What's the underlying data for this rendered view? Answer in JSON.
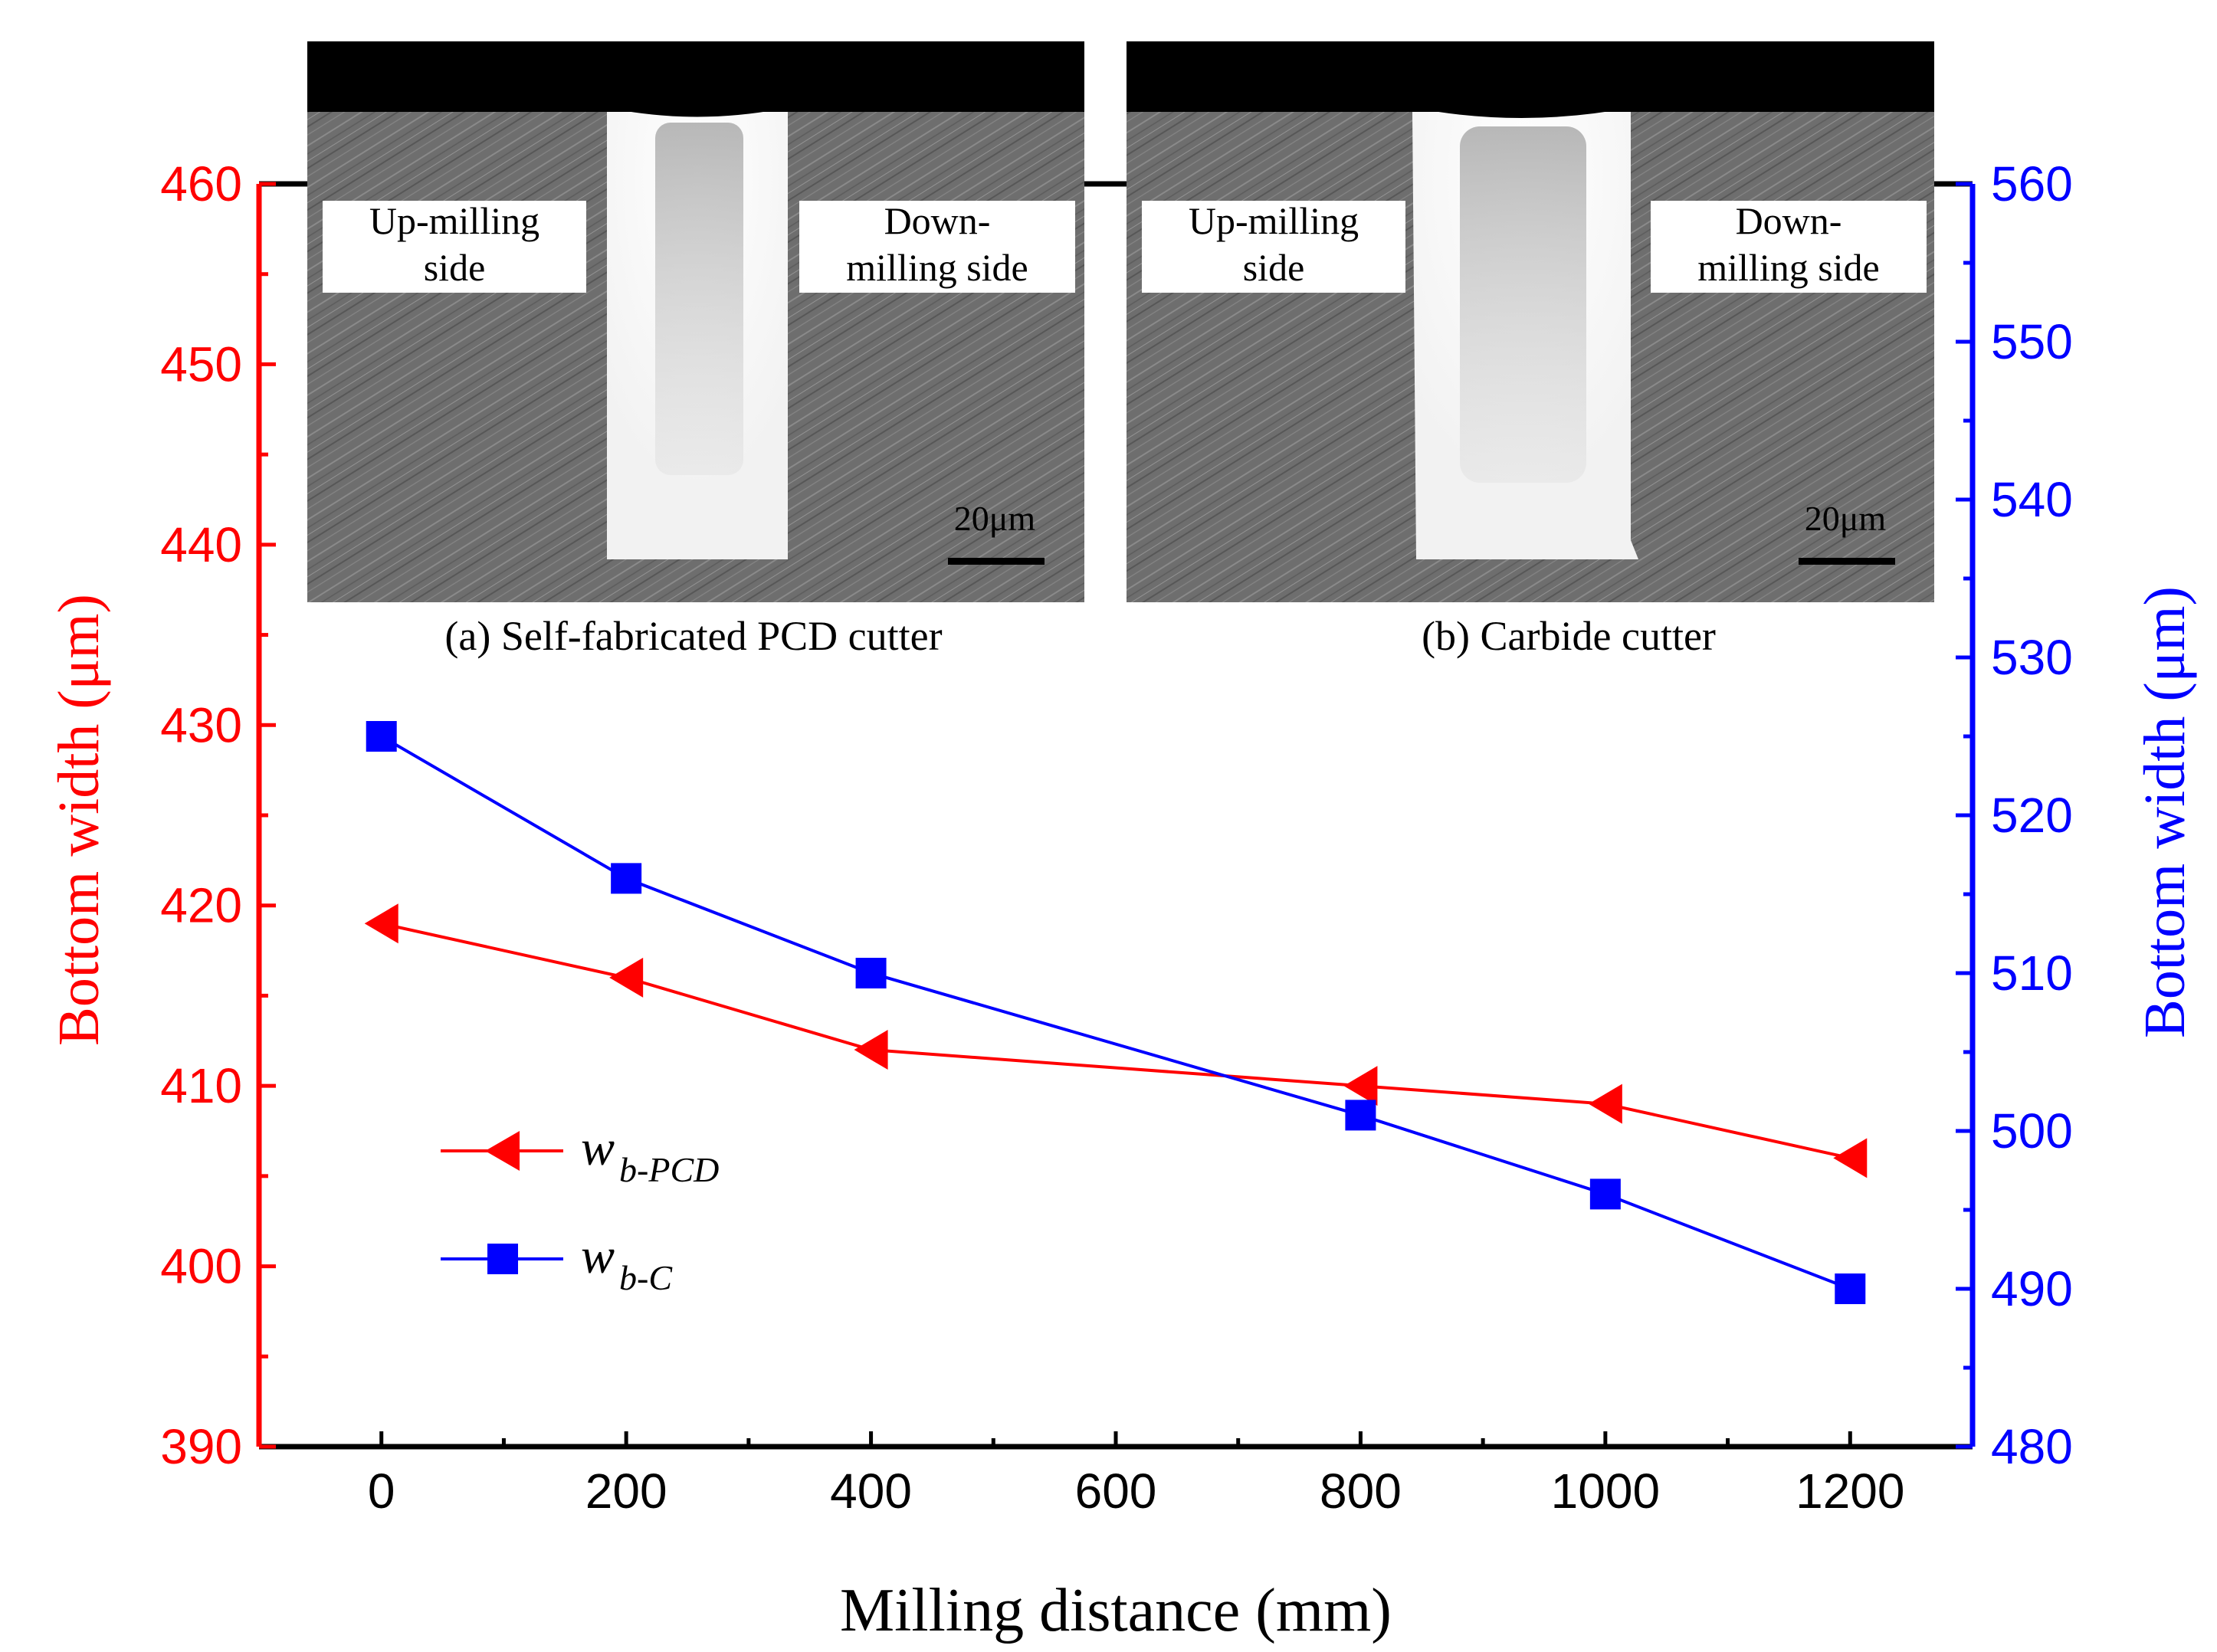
{
  "chart_data": {
    "type": "line",
    "xlabel": "Milling distance (mm)",
    "ylabel_left": "Bottom width (μm)",
    "ylabel_right": "Bottom width (μm)",
    "xlim": [
      -100,
      1300
    ],
    "ylim_left": [
      390,
      460
    ],
    "ylim_right": [
      480,
      560
    ],
    "x_ticks": [
      0,
      200,
      400,
      600,
      800,
      1000,
      1200
    ],
    "y_ticks_left": [
      390,
      400,
      410,
      420,
      430,
      440,
      450,
      460
    ],
    "y_ticks_right": [
      480,
      490,
      500,
      510,
      520,
      530,
      540,
      550,
      560
    ],
    "grid": false,
    "legend_position": "lower-left",
    "series": [
      {
        "name": "w",
        "name_sub": "b-PCD",
        "axis": "left",
        "marker": "left-triangle",
        "color": "#ff0000",
        "x": [
          0,
          200,
          400,
          800,
          1000,
          1200
        ],
        "y": [
          419,
          416,
          412,
          410,
          409,
          406
        ]
      },
      {
        "name": "w",
        "name_sub": "b-C",
        "axis": "right",
        "marker": "square",
        "color": "#0000ff",
        "x": [
          0,
          200,
          400,
          800,
          1000,
          1200
        ],
        "y": [
          525,
          516,
          510,
          501,
          496,
          490
        ]
      }
    ],
    "colors": {
      "left_axis": "#ff0000",
      "right_axis": "#0000ff",
      "frame": "#000000"
    }
  },
  "insets": [
    {
      "id": "a",
      "caption": "(a) Self-fabricated PCD cutter",
      "left_label": [
        "Up-milling",
        "side"
      ],
      "right_label": [
        "Down-",
        "milling side"
      ],
      "scale_bar": "20μm"
    },
    {
      "id": "b",
      "caption": "(b) Carbide cutter",
      "left_label": [
        "Up-milling",
        "side"
      ],
      "right_label": [
        "Down-",
        "milling side"
      ],
      "scale_bar": "20μm"
    }
  ]
}
